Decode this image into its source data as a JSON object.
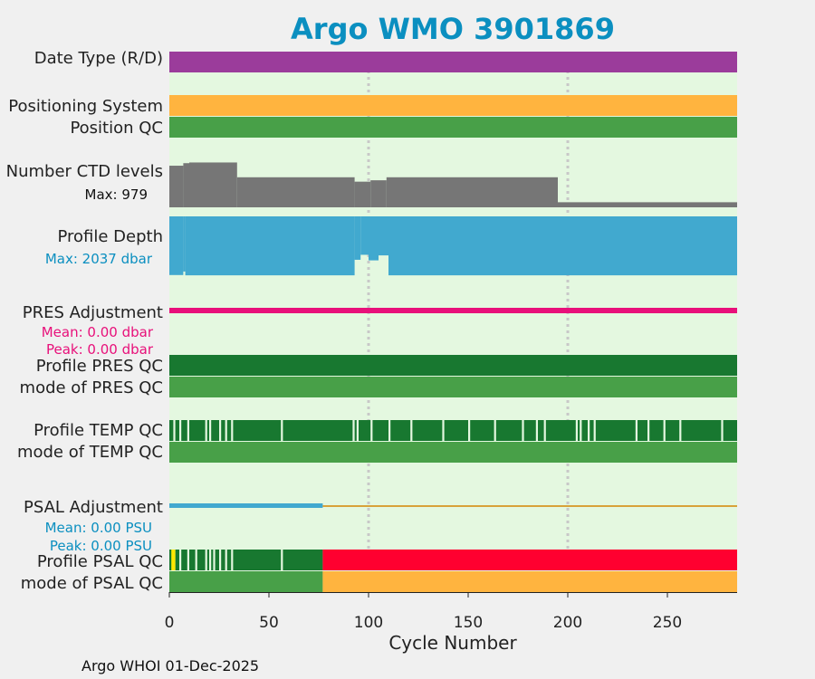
{
  "chart_data": {
    "type": "multi-track status plot",
    "title": "Argo WMO 3901869",
    "xlabel": "Cycle Number",
    "xlim": [
      0,
      285
    ],
    "xticks": [
      0,
      50,
      100,
      150,
      200,
      250
    ],
    "grid_x": [
      100,
      200
    ],
    "footer": "Argo WHOI 01-Dec-2025",
    "colors": {
      "background": "#e4f8e0",
      "figure": "#f0f0f0",
      "title": "#0b8fc0",
      "date_type": "#9b3c9b",
      "positioning": "#ffb43f",
      "qc_mode_good": "#48a048",
      "qc_profile_good": "#187830",
      "ctd_levels": "#767676",
      "profile_depth": "#41a9cf",
      "pres_adjustment": "#e8107a",
      "psal_adjustment": "#41a9cf",
      "psal_adjustment_zero": "#d8a23a",
      "qc_flag_bad": "#ff0030",
      "qc_flag_probably_good": "#ffe800",
      "qc_mode_bad": "#ffb43f",
      "grid": "#c8c8c8"
    },
    "tracks": {
      "date_type": {
        "label": "Date Type (R/D)",
        "value": "R"
      },
      "positioning_system": {
        "label": "Positioning System"
      },
      "position_qc": {
        "label": "Position QC"
      },
      "ctd_levels": {
        "label": "Number CTD levels",
        "max_label": "Max: 979",
        "max": 979,
        "segments": [
          {
            "from": 0,
            "to": 7,
            "value": 900
          },
          {
            "from": 7,
            "to": 10,
            "value": 955
          },
          {
            "from": 10,
            "to": 34,
            "value": 970
          },
          {
            "from": 34,
            "to": 93,
            "value": 650
          },
          {
            "from": 93,
            "to": 101,
            "value": 555
          },
          {
            "from": 101,
            "to": 109,
            "value": 585
          },
          {
            "from": 109,
            "to": 195,
            "value": 650
          },
          {
            "from": 195,
            "to": 285,
            "value": 110
          }
        ]
      },
      "profile_depth": {
        "label": "Profile Depth",
        "max_label": "Max: 2037 dbar",
        "max": 2037,
        "segments": [
          {
            "from": 0,
            "to": 7,
            "value": 2000
          },
          {
            "from": 7,
            "to": 8,
            "value": 1880
          },
          {
            "from": 8,
            "to": 93,
            "value": 2010
          },
          {
            "from": 93,
            "to": 96,
            "value": 1480
          },
          {
            "from": 96,
            "to": 100,
            "value": 1310
          },
          {
            "from": 100,
            "to": 105,
            "value": 1500
          },
          {
            "from": 105,
            "to": 110,
            "value": 1330
          },
          {
            "from": 110,
            "to": 285,
            "value": 2010
          }
        ]
      },
      "pres_adjustment": {
        "label": "PRES Adjustment",
        "mean_label": "Mean: 0.00 dbar",
        "peak_label": "Peak: 0.00 dbar",
        "mean": 0.0,
        "peak": 0.0
      },
      "profile_pres_qc": {
        "label": "Profile PRES QC"
      },
      "mode_pres_qc": {
        "label": "mode of PRES QC"
      },
      "profile_temp_qc": {
        "label": "Profile TEMP QC",
        "flag_cycles": [
          2,
          5,
          9,
          18,
          20,
          25,
          28,
          31,
          56,
          92,
          94,
          101,
          110,
          121,
          137,
          150,
          163,
          177,
          184,
          188,
          204,
          206,
          210,
          213,
          234,
          240,
          248,
          256,
          277
        ]
      },
      "mode_temp_qc": {
        "label": "mode of TEMP QC"
      },
      "psal_adjustment": {
        "label": "PSAL Adjustment",
        "mean_label": "Mean: 0.00 PSU",
        "peak_label": "Peak: 0.00 PSU",
        "mean": 0.0,
        "peak": 0.0,
        "adjusted_until": 77
      },
      "profile_psal_qc": {
        "label": "Profile PSAL QC",
        "flag_cycles": [
          2,
          5,
          9,
          13,
          18,
          20,
          22,
          25,
          28,
          31,
          56
        ],
        "probably_good_from": 1,
        "probably_good_to": 3,
        "good_until": 77
      },
      "mode_psal_qc": {
        "label": "mode of PSAL QC",
        "good_until": 77
      }
    }
  }
}
